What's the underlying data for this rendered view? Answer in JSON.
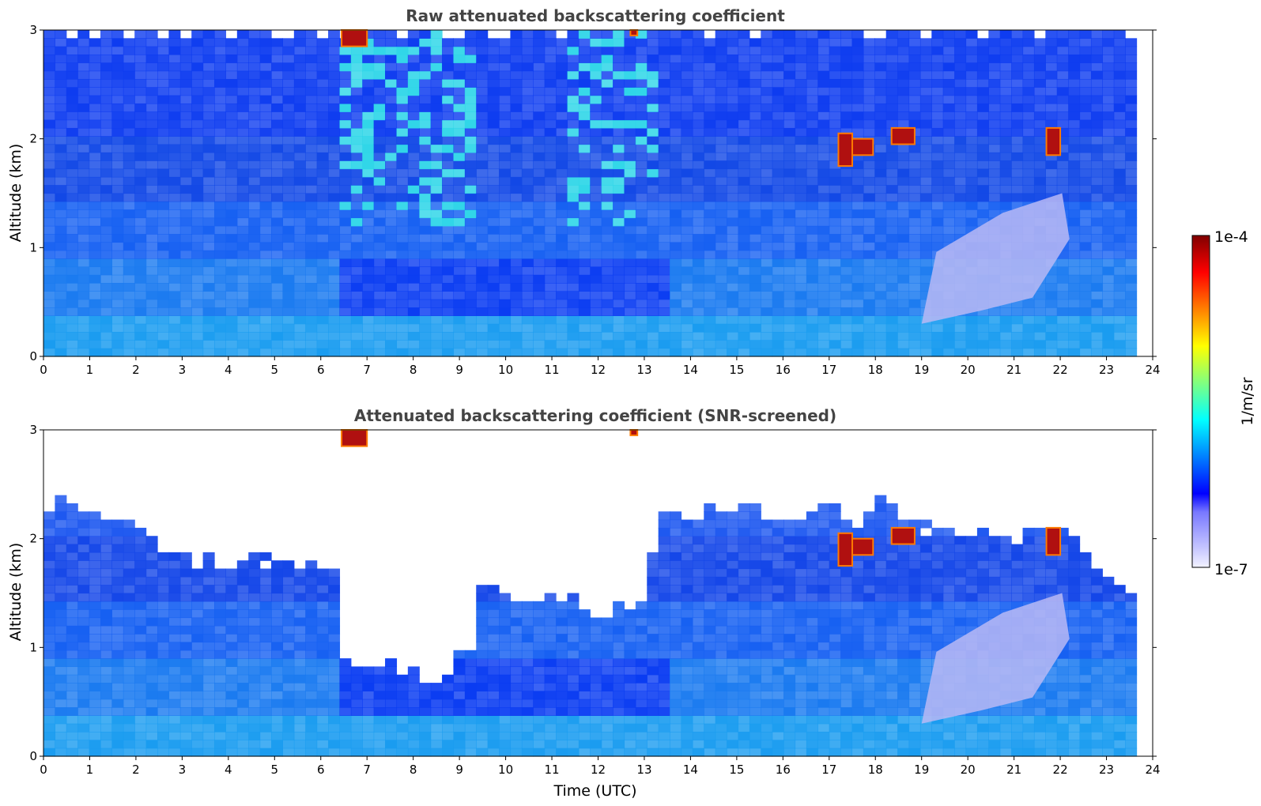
{
  "chart_data": [
    {
      "type": "heatmap",
      "title": "Raw attenuated backscattering coefficient",
      "xlabel": "",
      "ylabel": "Altitude (km)",
      "xlim": [
        0,
        24
      ],
      "ylim": [
        0,
        3
      ],
      "xticks": [
        0,
        1,
        2,
        3,
        4,
        5,
        6,
        7,
        8,
        9,
        10,
        11,
        12,
        13,
        14,
        15,
        16,
        17,
        18,
        19,
        20,
        21,
        22,
        23,
        24
      ],
      "yticks": [
        0,
        1,
        2,
        3
      ],
      "data_extent_x": [
        0,
        23.65
      ],
      "screening": "none",
      "colormap": "jet",
      "scale": "log",
      "features": [
        {
          "kind": "cloud",
          "t": [
            6.45,
            7.0
          ],
          "z": [
            2.85,
            3.0
          ],
          "level": "high"
        },
        {
          "kind": "cloud",
          "t": [
            12.7,
            12.85
          ],
          "z": [
            2.95,
            3.0
          ],
          "level": "high"
        },
        {
          "kind": "cloud",
          "t": [
            17.2,
            17.5
          ],
          "z": [
            1.75,
            2.05
          ],
          "level": "high"
        },
        {
          "kind": "cloud",
          "t": [
            17.5,
            17.95
          ],
          "z": [
            1.85,
            2.0
          ],
          "level": "high"
        },
        {
          "kind": "cloud",
          "t": [
            18.35,
            18.85
          ],
          "z": [
            1.95,
            2.1
          ],
          "level": "high"
        },
        {
          "kind": "cloud",
          "t": [
            21.7,
            22.0
          ],
          "z": [
            1.85,
            2.1
          ],
          "level": "high"
        },
        {
          "kind": "aerosol-layer",
          "t": [
            19.0,
            22.2
          ],
          "z": [
            0.3,
            1.5
          ],
          "level": "low"
        }
      ]
    },
    {
      "type": "heatmap",
      "title": "Attenuated backscattering coefficient (SNR-screened)",
      "xlabel": "Time (UTC)",
      "ylabel": "Altitude (km)",
      "xlim": [
        0,
        24
      ],
      "ylim": [
        0,
        3
      ],
      "xticks": [
        0,
        1,
        2,
        3,
        4,
        5,
        6,
        7,
        8,
        9,
        10,
        11,
        12,
        13,
        14,
        15,
        16,
        17,
        18,
        19,
        20,
        21,
        22,
        23,
        24
      ],
      "yticks": [
        0,
        1,
        2,
        3
      ],
      "data_extent_x": [
        0,
        23.65
      ],
      "screening": "SNR",
      "colormap": "jet",
      "scale": "log",
      "signal_top_km": [
        [
          0,
          2.3
        ],
        [
          0.5,
          2.4
        ],
        [
          1,
          2.25
        ],
        [
          2,
          2.1
        ],
        [
          3,
          1.8
        ],
        [
          4,
          1.8
        ],
        [
          5,
          1.8
        ],
        [
          6.3,
          1.75
        ],
        [
          6.5,
          0.9
        ],
        [
          7.0,
          0.8
        ],
        [
          7.5,
          0.85
        ],
        [
          8.0,
          0.75
        ],
        [
          8.5,
          0.7
        ],
        [
          9.0,
          0.95
        ],
        [
          9.4,
          1.05
        ],
        [
          9.5,
          1.65
        ],
        [
          10.0,
          1.5
        ],
        [
          10.5,
          1.4
        ],
        [
          11.0,
          1.45
        ],
        [
          11.5,
          1.5
        ],
        [
          12.0,
          1.25
        ],
        [
          12.5,
          1.35
        ],
        [
          13.0,
          1.5
        ],
        [
          13.3,
          2.2
        ],
        [
          14.0,
          2.2
        ],
        [
          15.0,
          2.3
        ],
        [
          16.0,
          2.2
        ],
        [
          16.5,
          2.2
        ],
        [
          17.0,
          2.35
        ],
        [
          17.5,
          2.1
        ],
        [
          18.0,
          2.4
        ],
        [
          18.5,
          2.25
        ],
        [
          19.0,
          2.1
        ],
        [
          20.0,
          2.05
        ],
        [
          21.0,
          2.0
        ],
        [
          22.0,
          2.1
        ],
        [
          22.6,
          1.9
        ],
        [
          23.0,
          1.65
        ],
        [
          23.65,
          1.5
        ]
      ],
      "features": [
        {
          "kind": "cloud",
          "t": [
            6.45,
            7.0
          ],
          "z": [
            2.85,
            3.0
          ],
          "level": "high"
        },
        {
          "kind": "cloud",
          "t": [
            12.7,
            12.85
          ],
          "z": [
            2.95,
            3.0
          ],
          "level": "high"
        },
        {
          "kind": "cloud",
          "t": [
            17.2,
            17.5
          ],
          "z": [
            1.75,
            2.05
          ],
          "level": "high"
        },
        {
          "kind": "cloud",
          "t": [
            17.5,
            17.95
          ],
          "z": [
            1.85,
            2.0
          ],
          "level": "high"
        },
        {
          "kind": "cloud",
          "t": [
            18.35,
            18.85
          ],
          "z": [
            1.95,
            2.1
          ],
          "level": "high"
        },
        {
          "kind": "cloud",
          "t": [
            21.7,
            22.0
          ],
          "z": [
            1.85,
            2.1
          ],
          "level": "high"
        },
        {
          "kind": "aerosol-layer",
          "t": [
            19.0,
            22.2
          ],
          "z": [
            0.3,
            1.5
          ],
          "level": "low"
        }
      ]
    }
  ],
  "colorbar": {
    "label": "1/m/sr",
    "max_label": "1e-4",
    "min_label": "1e-7",
    "min_value": 1e-07,
    "max_value": 0.0001,
    "scale": "log",
    "colors": [
      "#f2f2ff",
      "#c8c8ff",
      "#a0a0ff",
      "#7878ff",
      "#0000ff",
      "#0040ff",
      "#0080ff",
      "#00c0ff",
      "#00ffff",
      "#40ffbf",
      "#80ff80",
      "#bfff40",
      "#ffff00",
      "#ffbf00",
      "#ff8000",
      "#ff4000",
      "#ff0000",
      "#c00000",
      "#800000"
    ]
  }
}
